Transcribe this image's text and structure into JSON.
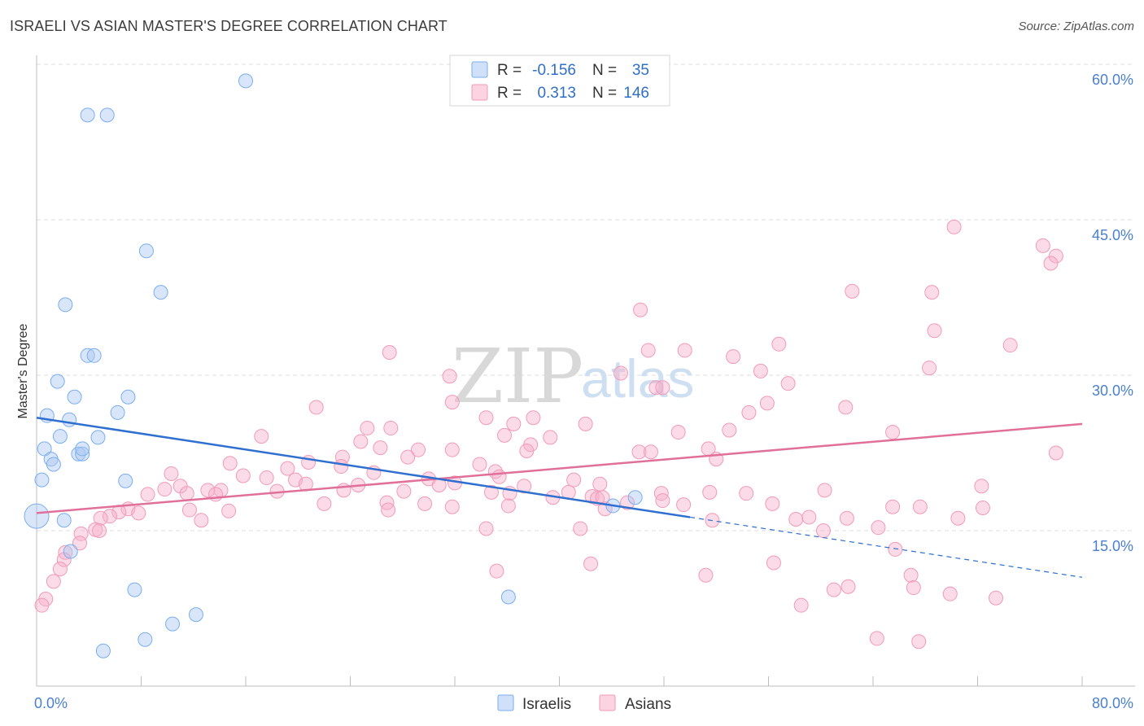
{
  "title": "ISRAELI VS ASIAN MASTER'S DEGREE CORRELATION CHART",
  "source": "Source: ZipAtlas.com",
  "watermark": {
    "zip": "ZIP",
    "atlas": "atlas"
  },
  "legend": {
    "rows": [
      {
        "r_label": "R =",
        "r_value": "-0.156",
        "n_label": "N =",
        "n_value": "35",
        "color": "#7aaef0"
      },
      {
        "r_label": "R =",
        "r_value": "0.313",
        "n_label": "N =",
        "n_value": "146",
        "color": "#f29ab8"
      }
    ]
  },
  "chart_data": {
    "type": "scatter",
    "title": "ISRAELI VS ASIAN MASTER'S DEGREE CORRELATION CHART",
    "xlabel": "",
    "ylabel": "Master's Degree",
    "xlim": [
      0,
      80
    ],
    "ylim": [
      0,
      60
    ],
    "x_tick_labels": [
      "0.0%",
      "80.0%"
    ],
    "y_ticks": [
      15,
      30,
      45,
      60
    ],
    "y_tick_labels": [
      "15.0%",
      "30.0%",
      "45.0%",
      "60.0%"
    ],
    "grid": "horizontal dashed",
    "legend_position": "bottom",
    "series": [
      {
        "name": "Israelis",
        "color": "#7aaef0",
        "line_color": "#2f6fd0",
        "trend": {
          "x": [
            0,
            50
          ],
          "y": [
            25.9,
            16.3
          ],
          "dashed_to": [
            80,
            10.5
          ]
        },
        "points": [
          [
            16.0,
            58.4
          ],
          [
            3.9,
            55.1
          ],
          [
            5.4,
            55.1
          ],
          [
            8.4,
            42.0
          ],
          [
            9.5,
            38.0
          ],
          [
            2.2,
            36.8
          ],
          [
            3.9,
            31.9
          ],
          [
            4.4,
            31.9
          ],
          [
            1.6,
            29.4
          ],
          [
            2.9,
            27.9
          ],
          [
            7.0,
            27.9
          ],
          [
            0.8,
            26.1
          ],
          [
            2.5,
            25.7
          ],
          [
            6.2,
            26.4
          ],
          [
            1.8,
            24.1
          ],
          [
            4.7,
            24.0
          ],
          [
            0.6,
            22.9
          ],
          [
            3.2,
            22.4
          ],
          [
            3.5,
            22.4
          ],
          [
            3.5,
            22.9
          ],
          [
            1.1,
            21.9
          ],
          [
            1.3,
            21.4
          ],
          [
            0.4,
            19.9
          ],
          [
            6.8,
            19.8
          ],
          [
            0.0,
            16.4
          ],
          [
            2.1,
            16.0
          ],
          [
            2.6,
            13.0
          ],
          [
            7.5,
            9.3
          ],
          [
            36.1,
            8.6
          ],
          [
            12.2,
            6.9
          ],
          [
            10.4,
            6.0
          ],
          [
            8.3,
            4.5
          ],
          [
            5.1,
            3.4
          ],
          [
            44.1,
            17.4
          ],
          [
            45.8,
            18.2
          ]
        ]
      },
      {
        "name": "Asians",
        "color": "#f29ab8",
        "line_color": "#e0709a",
        "trend": {
          "x": [
            0,
            80
          ],
          "y": [
            16.7,
            25.3
          ]
        },
        "points": [
          [
            70.2,
            44.3
          ],
          [
            77.0,
            42.5
          ],
          [
            78.0,
            41.5
          ],
          [
            77.6,
            40.8
          ],
          [
            62.4,
            38.1
          ],
          [
            68.5,
            38.0
          ],
          [
            46.2,
            36.3
          ],
          [
            68.7,
            34.3
          ],
          [
            56.8,
            33.0
          ],
          [
            74.5,
            32.9
          ],
          [
            46.8,
            32.4
          ],
          [
            49.6,
            32.4
          ],
          [
            27.0,
            32.2
          ],
          [
            53.3,
            31.8
          ],
          [
            55.4,
            30.4
          ],
          [
            68.3,
            30.7
          ],
          [
            31.6,
            29.9
          ],
          [
            44.7,
            30.2
          ],
          [
            57.5,
            29.2
          ],
          [
            47.4,
            28.8
          ],
          [
            47.9,
            28.8
          ],
          [
            31.8,
            27.4
          ],
          [
            21.4,
            26.9
          ],
          [
            55.9,
            27.3
          ],
          [
            61.9,
            26.9
          ],
          [
            54.5,
            26.4
          ],
          [
            34.4,
            25.9
          ],
          [
            38.0,
            25.9
          ],
          [
            36.5,
            25.3
          ],
          [
            42.0,
            25.3
          ],
          [
            25.3,
            24.9
          ],
          [
            27.1,
            24.9
          ],
          [
            53.0,
            24.7
          ],
          [
            49.1,
            24.5
          ],
          [
            65.5,
            24.5
          ],
          [
            17.2,
            24.1
          ],
          [
            35.8,
            24.2
          ],
          [
            39.3,
            24.0
          ],
          [
            24.8,
            23.6
          ],
          [
            37.8,
            23.3
          ],
          [
            26.3,
            23.0
          ],
          [
            29.2,
            22.8
          ],
          [
            31.8,
            22.8
          ],
          [
            28.4,
            22.1
          ],
          [
            46.1,
            22.6
          ],
          [
            37.5,
            22.7
          ],
          [
            51.4,
            22.9
          ],
          [
            47.0,
            22.6
          ],
          [
            52.0,
            21.9
          ],
          [
            78.0,
            22.5
          ],
          [
            23.4,
            22.1
          ],
          [
            20.8,
            21.6
          ],
          [
            14.8,
            21.5
          ],
          [
            23.3,
            21.2
          ],
          [
            33.9,
            21.4
          ],
          [
            19.2,
            21.0
          ],
          [
            35.1,
            20.7
          ],
          [
            25.8,
            20.6
          ],
          [
            10.3,
            20.5
          ],
          [
            15.8,
            20.3
          ],
          [
            35.4,
            20.2
          ],
          [
            17.6,
            20.1
          ],
          [
            30.0,
            20.0
          ],
          [
            19.8,
            19.9
          ],
          [
            41.1,
            19.9
          ],
          [
            20.6,
            19.5
          ],
          [
            24.6,
            19.4
          ],
          [
            43.1,
            19.5
          ],
          [
            11.0,
            19.3
          ],
          [
            32.0,
            19.6
          ],
          [
            37.3,
            19.3
          ],
          [
            30.8,
            19.4
          ],
          [
            72.3,
            19.3
          ],
          [
            9.8,
            19.0
          ],
          [
            13.1,
            18.9
          ],
          [
            14.1,
            18.9
          ],
          [
            18.4,
            18.8
          ],
          [
            23.5,
            18.9
          ],
          [
            28.1,
            18.8
          ],
          [
            34.8,
            18.7
          ],
          [
            40.7,
            18.7
          ],
          [
            11.5,
            18.6
          ],
          [
            47.8,
            18.6
          ],
          [
            60.3,
            18.9
          ],
          [
            8.5,
            18.5
          ],
          [
            13.7,
            18.5
          ],
          [
            36.2,
            18.6
          ],
          [
            51.5,
            18.7
          ],
          [
            54.3,
            18.6
          ],
          [
            42.5,
            18.3
          ],
          [
            39.5,
            18.2
          ],
          [
            42.9,
            18.1
          ],
          [
            43.3,
            18.2
          ],
          [
            47.9,
            17.9
          ],
          [
            45.2,
            17.7
          ],
          [
            26.8,
            17.7
          ],
          [
            29.7,
            17.6
          ],
          [
            22.0,
            17.6
          ],
          [
            49.5,
            17.5
          ],
          [
            56.3,
            17.6
          ],
          [
            31.8,
            17.3
          ],
          [
            36.1,
            17.4
          ],
          [
            65.5,
            17.3
          ],
          [
            67.6,
            17.3
          ],
          [
            72.4,
            17.2
          ],
          [
            11.7,
            17.0
          ],
          [
            26.9,
            17.0
          ],
          [
            14.7,
            16.9
          ],
          [
            7.0,
            17.1
          ],
          [
            43.5,
            17.1
          ],
          [
            6.3,
            16.8
          ],
          [
            7.8,
            16.7
          ],
          [
            5.6,
            16.4
          ],
          [
            4.9,
            16.2
          ],
          [
            12.6,
            16.0
          ],
          [
            51.7,
            16.0
          ],
          [
            58.1,
            16.1
          ],
          [
            59.1,
            16.3
          ],
          [
            62.0,
            16.2
          ],
          [
            70.5,
            16.2
          ],
          [
            4.5,
            15.1
          ],
          [
            4.8,
            15.0
          ],
          [
            3.4,
            14.7
          ],
          [
            34.4,
            15.2
          ],
          [
            41.6,
            15.2
          ],
          [
            60.2,
            15.0
          ],
          [
            64.4,
            15.3
          ],
          [
            3.3,
            13.8
          ],
          [
            2.2,
            12.9
          ],
          [
            2.1,
            12.2
          ],
          [
            1.8,
            11.3
          ],
          [
            1.3,
            10.1
          ],
          [
            56.4,
            11.9
          ],
          [
            65.7,
            13.2
          ],
          [
            35.2,
            11.1
          ],
          [
            42.4,
            11.8
          ],
          [
            51.2,
            10.7
          ],
          [
            66.9,
            10.7
          ],
          [
            0.7,
            8.4
          ],
          [
            0.4,
            7.8
          ],
          [
            58.5,
            7.8
          ],
          [
            61.0,
            9.3
          ],
          [
            62.1,
            9.6
          ],
          [
            67.1,
            9.5
          ],
          [
            69.9,
            8.9
          ],
          [
            73.4,
            8.5
          ],
          [
            64.3,
            4.6
          ],
          [
            67.5,
            4.3
          ]
        ]
      }
    ]
  },
  "bottom_legend": [
    {
      "label": "Israelis",
      "color": "#7aaef0"
    },
    {
      "label": "Asians",
      "color": "#f29ab8"
    }
  ]
}
